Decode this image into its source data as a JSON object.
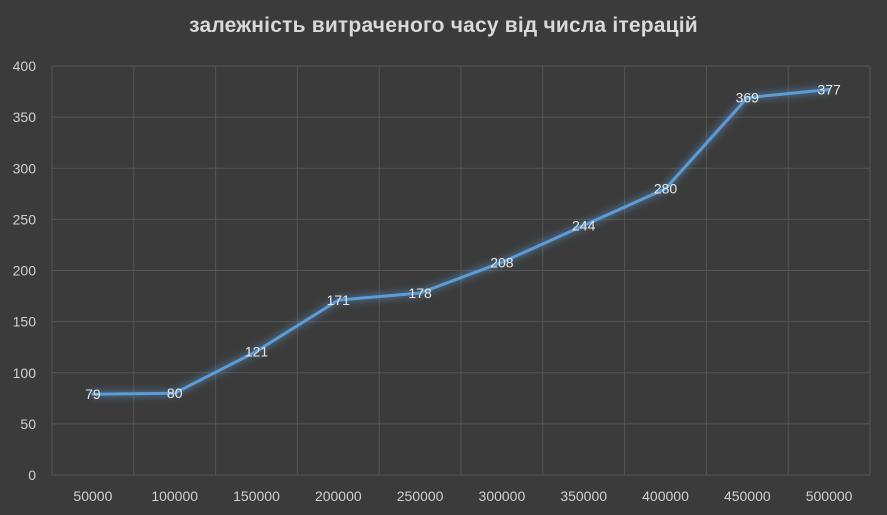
{
  "chart_data": {
    "type": "line",
    "title": "залежність витраченого часу від числа ітерацій",
    "xlabel": "",
    "ylabel": "",
    "categories": [
      "50000",
      "100000",
      "150000",
      "200000",
      "250000",
      "300000",
      "350000",
      "400000",
      "450000",
      "500000"
    ],
    "series": [
      {
        "values": [
          79,
          80,
          121,
          171,
          178,
          208,
          244,
          280,
          369,
          377
        ]
      }
    ],
    "ylim": [
      0,
      400
    ],
    "yticks": [
      0,
      50,
      100,
      150,
      200,
      250,
      300,
      350,
      400
    ],
    "grid": true,
    "legend": "none",
    "colors": {
      "background": "#3b3b3b",
      "line": "#5b9bd5",
      "grid": "#555555",
      "text": "#d9d9d9"
    }
  }
}
